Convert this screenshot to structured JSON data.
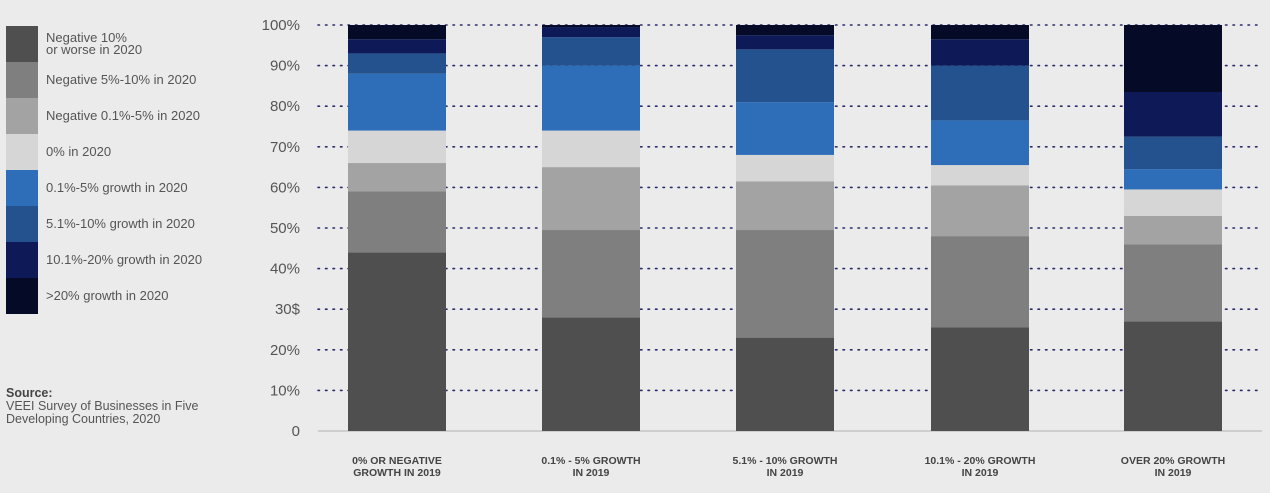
{
  "legend": {
    "items": [
      {
        "label": "Negative 10%\nor worse in 2020",
        "color": "#4f4f4f"
      },
      {
        "label": "Negative 5%-10% in 2020",
        "color": "#7f7f7f"
      },
      {
        "label": "Negative 0.1%-5% in 2020",
        "color": "#a3a3a3"
      },
      {
        "label": "0% in 2020",
        "color": "#d6d6d6"
      },
      {
        "label": "0.1%-5% growth in 2020",
        "color": "#2e6db8"
      },
      {
        "label": "5.1%-10% growth in 2020",
        "color": "#23528f"
      },
      {
        "label": "10.1%-20% growth in 2020",
        "color": "#0d1a57"
      },
      {
        "label": ">20% growth in 2020",
        "color": "#050b26"
      }
    ]
  },
  "source": {
    "title": "Source:",
    "text": "VEEI Survey of Businesses in Five\nDeveloping Countries, 2020"
  },
  "chart_data": {
    "type": "bar",
    "stacked": true,
    "y_tick_labels": [
      "0",
      "10%",
      "20%",
      "30$",
      "40%",
      "50%",
      "60%",
      "70%",
      "80%",
      "90%",
      "100%"
    ],
    "ylim": [
      0,
      100
    ],
    "grid": true,
    "categories": [
      [
        "0% OR NEGATIVE",
        "GROWTH IN 2019"
      ],
      [
        "0.1% - 5% GROWTH",
        "IN 2019"
      ],
      [
        "5.1% - 10% GROWTH",
        "IN 2019"
      ],
      [
        "10.1% - 20% GROWTH",
        "IN 2019"
      ],
      [
        "OVER 20% GROWTH",
        "IN 2019"
      ]
    ],
    "series": [
      {
        "name": "Negative 10% or worse in 2020",
        "color": "#4f4f4f",
        "values": [
          44,
          28,
          23,
          25.5,
          27
        ]
      },
      {
        "name": "Negative 5%-10% in 2020",
        "color": "#7f7f7f",
        "values": [
          15,
          21.5,
          26.5,
          22.5,
          19
        ]
      },
      {
        "name": "Negative 0.1%-5% in 2020",
        "color": "#a3a3a3",
        "values": [
          7,
          15.5,
          12,
          12.5,
          7
        ]
      },
      {
        "name": "0% in 2020",
        "color": "#d6d6d6",
        "values": [
          8,
          9,
          6.5,
          5,
          6.5
        ]
      },
      {
        "name": "0.1%-5% growth in 2020",
        "color": "#2e6db8",
        "values": [
          14,
          16,
          13,
          11,
          5
        ]
      },
      {
        "name": "5.1%-10% growth in 2020",
        "color": "#23528f",
        "values": [
          5,
          7,
          13,
          13.5,
          8
        ]
      },
      {
        "name": "10.1%-20% growth in 2020",
        "color": "#0d1a57",
        "values": [
          3.5,
          2.5,
          3.5,
          6.5,
          11
        ]
      },
      {
        "name": ">20% growth in 2020",
        "color": "#050b26",
        "values": [
          3.5,
          0.5,
          2.5,
          3.5,
          16.5
        ]
      }
    ]
  }
}
